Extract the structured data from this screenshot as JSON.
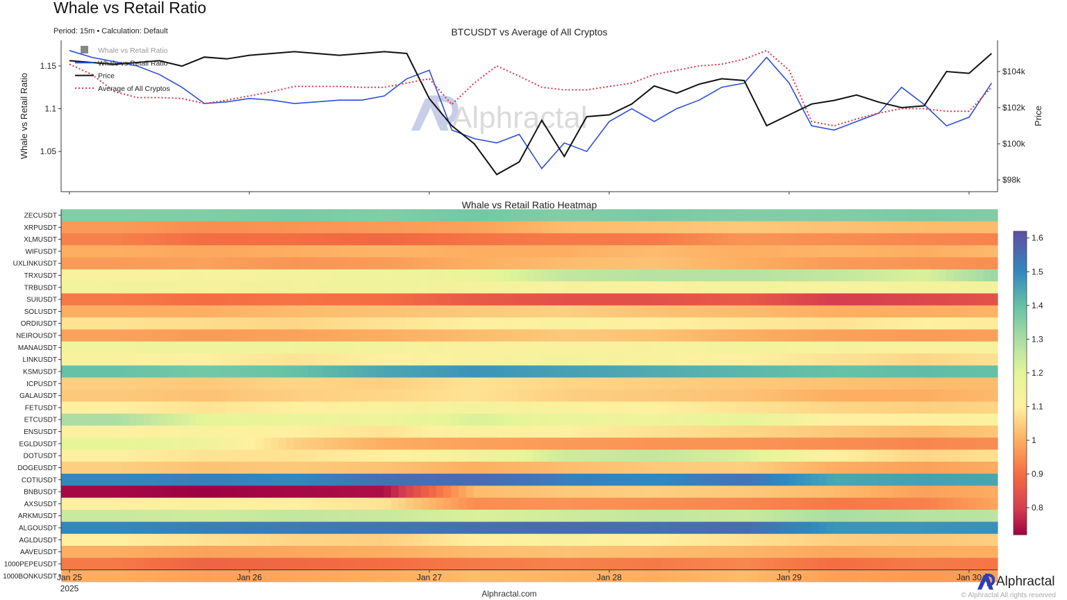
{
  "header": {
    "title": "Whale vs Retail Ratio",
    "subtitle": "Period: 15m • Calculation: Default"
  },
  "footer": {
    "site": "Alphractal.com",
    "brand": "Alphractal",
    "copyright": "© Alphractal All rights reserved"
  },
  "watermark": "Alphractal",
  "colors": {
    "whale_ratio": "#2b4fd6",
    "price": "#111111",
    "average": "#e0304a",
    "legend_gray": "#888888"
  },
  "chart_data": [
    {
      "type": "line",
      "title": "BTCUSDT vs Average of All Cryptos",
      "ylabel": "Whale vs Retail Ratio",
      "y2label": "Price",
      "ylim": [
        1.003,
        1.18
      ],
      "y2lim": [
        97.35,
        105.73
      ],
      "yticks": [
        "1.05",
        "1.1",
        "1.15"
      ],
      "yticks_values": [
        1.05,
        1.1,
        1.15
      ],
      "y2ticks": [
        "$98k",
        "$100k",
        "$102k",
        "$104k"
      ],
      "y2ticks_values": [
        98,
        100,
        102,
        104
      ],
      "xlim": [
        "2025-01-24T22:55",
        "2025-01-30T03:50"
      ],
      "legend": [
        "Whale vs Retail Ratio",
        "Whale vs Retail Ratio",
        "Price",
        "Average of All Cryptos"
      ],
      "legend_placement": "top-left",
      "grid": false,
      "x_step_hours": 3,
      "x_start": "2025-01-25T00:00",
      "series": [
        {
          "name": "Whale vs Retail Ratio",
          "axis": "left",
          "style": "solid",
          "color": "#2b4fd6",
          "values": [
            1.168,
            1.16,
            1.155,
            1.15,
            1.14,
            1.125,
            1.106,
            1.108,
            1.112,
            1.11,
            1.106,
            1.108,
            1.11,
            1.11,
            1.115,
            1.135,
            1.145,
            1.075,
            1.065,
            1.06,
            1.07,
            1.03,
            1.06,
            1.05,
            1.085,
            1.1,
            1.085,
            1.1,
            1.11,
            1.125,
            1.13,
            1.16,
            1.13,
            1.08,
            1.075,
            1.085,
            1.095,
            1.125,
            1.105,
            1.08,
            1.09,
            1.13
          ]
        },
        {
          "name": "Price",
          "axis": "right",
          "style": "solid",
          "color": "#111111",
          "values": [
            104.6,
            104.5,
            104.4,
            104.5,
            104.6,
            104.3,
            104.8,
            104.7,
            104.9,
            105.0,
            105.1,
            105.0,
            104.9,
            105.0,
            105.1,
            105.0,
            102.5,
            101.0,
            100.0,
            98.3,
            99.0,
            101.3,
            99.3,
            101.5,
            101.6,
            102.2,
            103.2,
            102.8,
            103.3,
            103.6,
            103.5,
            101.0,
            101.6,
            102.2,
            102.4,
            102.7,
            102.3,
            102.0,
            102.1,
            104.0,
            103.9,
            105.0
          ]
        },
        {
          "name": "Average of All Cryptos",
          "axis": "left",
          "style": "dotted",
          "color": "#e0304a",
          "values": [
            1.152,
            1.14,
            1.12,
            1.113,
            1.113,
            1.112,
            1.106,
            1.11,
            1.115,
            1.12,
            1.126,
            1.126,
            1.126,
            1.125,
            1.125,
            1.13,
            1.135,
            1.105,
            1.13,
            1.15,
            1.138,
            1.125,
            1.122,
            1.122,
            1.126,
            1.13,
            1.14,
            1.145,
            1.15,
            1.152,
            1.158,
            1.168,
            1.145,
            1.085,
            1.08,
            1.088,
            1.095,
            1.1,
            1.1,
            1.097,
            1.097,
            1.125
          ]
        }
      ]
    },
    {
      "type": "heatmap",
      "title": "Whale vs Retail Ratio Heatmap",
      "xticks": [
        "Jan 25",
        "Jan 26",
        "Jan 27",
        "Jan 28",
        "Jan 29",
        "Jan 30"
      ],
      "xticks_values": [
        "2025-01-25",
        "2025-01-26",
        "2025-01-27",
        "2025-01-28",
        "2025-01-29",
        "2025-01-30"
      ],
      "xtick_year": "2025",
      "x_step_hours": 12,
      "x_start": "2025-01-25T00:00",
      "colorbar": {
        "min": 0.72,
        "max": 1.62,
        "ticks": [
          "1.6",
          "1.5",
          "1.4",
          "1.3",
          "1.2",
          "1.1",
          "1",
          "0.9",
          "0.8"
        ],
        "tick_values": [
          1.6,
          1.5,
          1.4,
          1.3,
          1.2,
          1.1,
          1.0,
          0.9,
          0.8
        ],
        "colormap": "Spectral"
      },
      "rows": [
        {
          "label": "ZECUSDT",
          "values": [
            1.36,
            1.36,
            1.37,
            1.36,
            1.38,
            1.36,
            1.37,
            1.36,
            1.36,
            1.37,
            1.36
          ]
        },
        {
          "label": "XRPUSDT",
          "values": [
            0.97,
            0.95,
            0.96,
            0.97,
            0.98,
            1.02,
            1.03,
            1.04,
            1.03,
            1.02,
            1.02
          ]
        },
        {
          "label": "XLMUSDT",
          "values": [
            0.93,
            0.9,
            0.9,
            0.89,
            0.91,
            0.92,
            0.92,
            0.96,
            0.95,
            0.94,
            0.93
          ]
        },
        {
          "label": "WIFUSDT",
          "values": [
            1.0,
            0.99,
            1.0,
            1.01,
            1.0,
            1.0,
            1.02,
            1.0,
            1.01,
            1.0,
            1.02
          ]
        },
        {
          "label": "UXLINKUSDT",
          "values": [
            0.97,
            0.98,
            0.96,
            0.97,
            1.0,
            1.02,
            1.03,
            1.0,
            0.97,
            0.96,
            0.95
          ]
        },
        {
          "label": "TRXUSDT",
          "values": [
            1.12,
            1.13,
            1.14,
            1.15,
            1.18,
            1.26,
            1.28,
            1.28,
            1.26,
            1.22,
            1.35
          ]
        },
        {
          "label": "TRBUSDT",
          "values": [
            1.15,
            1.14,
            1.15,
            1.16,
            1.14,
            1.13,
            1.12,
            1.14,
            1.13,
            1.14,
            1.15
          ]
        },
        {
          "label": "SUIUSDT",
          "values": [
            0.92,
            0.9,
            0.91,
            0.9,
            0.86,
            0.84,
            0.84,
            0.86,
            0.8,
            0.82,
            0.85
          ]
        },
        {
          "label": "SOLUSDT",
          "values": [
            1.0,
            1.0,
            1.02,
            1.03,
            1.04,
            1.05,
            1.03,
            1.02,
            1.0,
            1.0,
            1.01
          ]
        },
        {
          "label": "ORDIUSDT",
          "values": [
            1.08,
            1.07,
            1.06,
            1.08,
            1.1,
            1.12,
            1.1,
            1.09,
            1.08,
            1.1,
            1.09
          ]
        },
        {
          "label": "NEIROUSDT",
          "values": [
            0.98,
            0.97,
            0.98,
            1.0,
            1.02,
            1.04,
            1.03,
            1.0,
            0.98,
            0.97,
            0.98
          ]
        },
        {
          "label": "MANAUSDT",
          "values": [
            1.15,
            1.16,
            1.15,
            1.14,
            1.12,
            1.12,
            1.13,
            1.14,
            1.13,
            1.12,
            1.13
          ]
        },
        {
          "label": "LINKUSDT",
          "values": [
            1.12,
            1.1,
            1.08,
            1.1,
            1.12,
            1.14,
            1.12,
            1.1,
            1.08,
            1.06,
            1.08
          ]
        },
        {
          "label": "KSMUSDT",
          "values": [
            1.4,
            1.38,
            1.4,
            1.45,
            1.48,
            1.46,
            1.44,
            1.42,
            1.4,
            1.41,
            1.4
          ]
        },
        {
          "label": "ICPUSDT",
          "values": [
            1.05,
            1.04,
            1.06,
            1.05,
            1.08,
            1.06,
            1.05,
            1.04,
            1.03,
            1.02,
            1.02
          ]
        },
        {
          "label": "GALAUSDT",
          "values": [
            1.04,
            1.03,
            1.05,
            1.06,
            1.08,
            1.05,
            1.04,
            1.03,
            1.0,
            1.0,
            1.02
          ]
        },
        {
          "label": "FETUSDT",
          "values": [
            1.1,
            1.08,
            1.1,
            1.12,
            1.14,
            1.12,
            1.1,
            1.08,
            1.06,
            1.05,
            1.06
          ]
        },
        {
          "label": "ETCUSDT",
          "values": [
            1.3,
            1.2,
            1.18,
            1.16,
            1.22,
            1.18,
            1.16,
            1.2,
            1.1,
            1.1,
            1.12
          ]
        },
        {
          "label": "ENSUSDT",
          "values": [
            1.1,
            1.12,
            1.1,
            1.08,
            1.12,
            1.1,
            1.08,
            1.06,
            1.04,
            1.02,
            1.04
          ]
        },
        {
          "label": "EGLDUSDT",
          "values": [
            1.2,
            1.16,
            1.05,
            1.0,
            0.98,
            0.97,
            0.96,
            0.96,
            0.95,
            0.94,
            0.95
          ]
        },
        {
          "label": "DOTUSDT",
          "values": [
            1.1,
            1.08,
            1.08,
            1.1,
            1.15,
            1.24,
            1.26,
            1.22,
            1.1,
            1.06,
            1.08
          ]
        },
        {
          "label": "DOGEUSDT",
          "values": [
            1.05,
            1.03,
            1.04,
            1.03,
            1.0,
            1.02,
            1.04,
            1.05,
            1.0,
            0.98,
            1.0
          ]
        },
        {
          "label": "COTIUSDT",
          "values": [
            1.5,
            1.52,
            1.5,
            1.55,
            1.56,
            1.52,
            1.5,
            1.54,
            1.45,
            1.46,
            1.45
          ]
        },
        {
          "label": "BNBUSDT",
          "values": [
            0.73,
            0.72,
            0.73,
            0.74,
            1.02,
            1.04,
            1.05,
            1.04,
            1.02,
            0.98,
            1.0
          ]
        },
        {
          "label": "AXSUSDT",
          "values": [
            1.1,
            1.12,
            1.1,
            1.08,
            0.95,
            0.96,
            0.95,
            0.94,
            0.92,
            0.93,
            1.0
          ]
        },
        {
          "label": "ARKMUSDT",
          "values": [
            1.25,
            1.24,
            1.26,
            1.25,
            1.22,
            1.24,
            1.26,
            1.25,
            1.3,
            1.28,
            1.27
          ]
        },
        {
          "label": "ALGOUSDT",
          "values": [
            1.5,
            1.52,
            1.53,
            1.54,
            1.55,
            1.56,
            1.55,
            1.56,
            1.48,
            1.48,
            1.49
          ]
        },
        {
          "label": "AGLDUSDT",
          "values": [
            1.1,
            1.08,
            1.06,
            1.05,
            1.1,
            1.12,
            1.1,
            1.08,
            1.05,
            1.04,
            1.05
          ]
        },
        {
          "label": "AAVEUSDT",
          "values": [
            1.0,
            0.98,
            0.99,
            1.0,
            1.02,
            1.03,
            1.02,
            1.01,
            0.99,
            1.0,
            1.0
          ]
        },
        {
          "label": "1000PEPEUSDT",
          "values": [
            0.92,
            0.88,
            0.89,
            0.9,
            0.92,
            0.93,
            0.92,
            0.94,
            0.9,
            0.92,
            0.91
          ]
        },
        {
          "label": "1000BONKUSDT",
          "values": [
            1.0,
            0.98,
            0.99,
            1.0,
            1.02,
            1.01,
            1.0,
            1.02,
            0.98,
            0.97,
            0.98
          ]
        }
      ]
    }
  ]
}
